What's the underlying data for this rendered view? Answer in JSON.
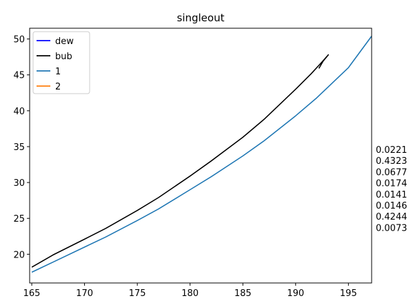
{
  "chart_data": {
    "type": "line",
    "title": "singleout",
    "xlabel": "",
    "ylabel": "",
    "xlim": [
      164.8,
      197.2
    ],
    "ylim": [
      16.0,
      51.5
    ],
    "xticks": [
      165,
      170,
      175,
      180,
      185,
      190,
      195
    ],
    "yticks": [
      20,
      25,
      30,
      35,
      40,
      45,
      50
    ],
    "grid": false,
    "legend_position": "top-left",
    "legend": [
      {
        "name": "dew",
        "color": "#0000ff"
      },
      {
        "name": "bub",
        "color": "#000000"
      },
      {
        "name": "1",
        "color": "#1f77b4"
      },
      {
        "name": "2",
        "color": "#ff7f0e"
      }
    ],
    "series": [
      {
        "name": "dew",
        "color": "#0000ff",
        "points": []
      },
      {
        "name": "bub",
        "color": "#000000",
        "points": [
          [
            165.0,
            18.2
          ],
          [
            167.0,
            19.9
          ],
          [
            170.0,
            22.1
          ],
          [
            172.0,
            23.6
          ],
          [
            175.0,
            26.1
          ],
          [
            177.0,
            27.9
          ],
          [
            180.0,
            30.9
          ],
          [
            182.0,
            33.0
          ],
          [
            185.0,
            36.3
          ],
          [
            187.0,
            38.8
          ],
          [
            190.0,
            43.0
          ],
          [
            191.5,
            45.2
          ],
          [
            192.5,
            46.8
          ],
          [
            193.1,
            47.8
          ],
          [
            192.6,
            46.9
          ],
          [
            192.2,
            45.9
          ]
        ]
      },
      {
        "name": "1",
        "color": "#1f77b4",
        "points": [
          [
            165.0,
            17.5
          ],
          [
            167.0,
            18.9
          ],
          [
            170.0,
            21.0
          ],
          [
            172.0,
            22.4
          ],
          [
            175.0,
            24.7
          ],
          [
            177.0,
            26.3
          ],
          [
            180.0,
            29.0
          ],
          [
            182.0,
            30.8
          ],
          [
            185.0,
            33.7
          ],
          [
            187.0,
            35.8
          ],
          [
            190.0,
            39.3
          ],
          [
            192.0,
            41.8
          ],
          [
            195.0,
            46.0
          ],
          [
            197.2,
            50.4
          ]
        ]
      },
      {
        "name": "2",
        "color": "#ff7f0e",
        "points": []
      }
    ],
    "side_values": [
      "0.0221",
      "0.4323",
      "0.0677",
      "0.0174",
      "0.0141",
      "0.0146",
      "0.4244",
      "0.0073"
    ]
  }
}
